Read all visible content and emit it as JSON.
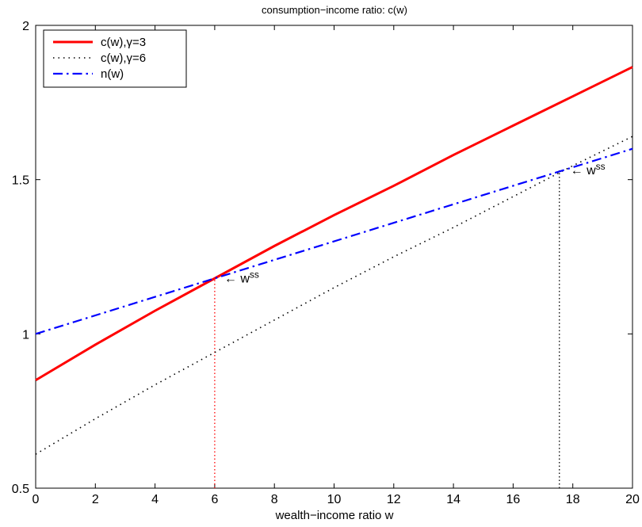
{
  "chart_data": {
    "type": "line",
    "title": "consumption−income ratio: c(w)",
    "xlabel": "wealth−income ratio w",
    "ylabel": "",
    "xlim": [
      0,
      20
    ],
    "ylim": [
      0.5,
      2
    ],
    "xticks": [
      0,
      2,
      4,
      6,
      8,
      10,
      12,
      14,
      16,
      18,
      20
    ],
    "yticks": [
      0.5,
      1,
      1.5,
      2
    ],
    "grid": false,
    "legend_position": "top-left",
    "series": [
      {
        "name": "c(w),γ=3",
        "color": "#ff0000",
        "style": "solid",
        "x": [
          0,
          2,
          4,
          6,
          8,
          10,
          12,
          14,
          16,
          18,
          20
        ],
        "values": [
          0.85,
          0.965,
          1.075,
          1.18,
          1.285,
          1.385,
          1.48,
          1.58,
          1.675,
          1.77,
          1.865
        ]
      },
      {
        "name": "c(w),γ=6",
        "color": "#000000",
        "style": "dotted",
        "x": [
          0,
          2,
          4,
          6,
          8,
          10,
          12,
          14,
          16,
          18,
          20
        ],
        "values": [
          0.61,
          0.725,
          0.835,
          0.94,
          1.045,
          1.15,
          1.25,
          1.345,
          1.445,
          1.545,
          1.64
        ]
      },
      {
        "name": "n(w)",
        "color": "#0000ff",
        "style": "dashdot",
        "x": [
          0,
          20
        ],
        "values": [
          1.0,
          1.6
        ]
      }
    ],
    "annotations": [
      {
        "id": "wss1",
        "arrow": "←",
        "text": "w",
        "superscript": "ss",
        "x": 6.0,
        "y": 1.18
      },
      {
        "id": "wss2",
        "arrow": "←",
        "text": "w",
        "superscript": "ss",
        "x": 17.6,
        "y": 1.53
      }
    ],
    "vlines": [
      {
        "x": 6.0,
        "from": 0.5,
        "to": 1.18,
        "color": "#ff0000"
      },
      {
        "x": 17.55,
        "from": 0.5,
        "to": 1.53,
        "color": "#000000"
      }
    ]
  }
}
